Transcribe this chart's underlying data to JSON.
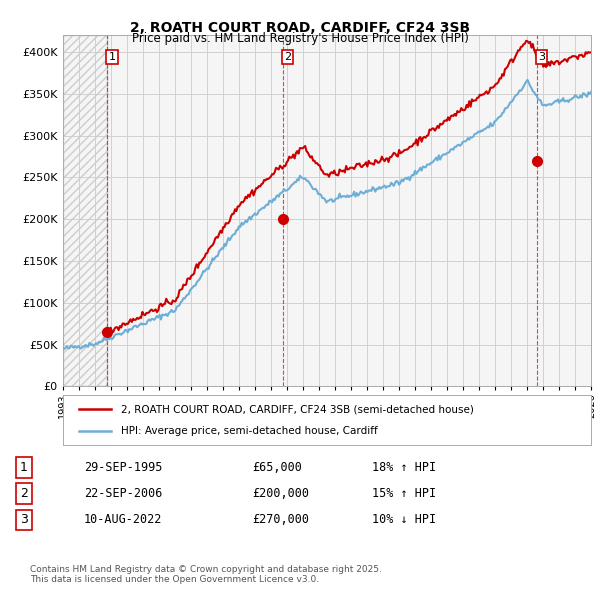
{
  "title_line1": "2, ROATH COURT ROAD, CARDIFF, CF24 3SB",
  "title_line2": "Price paid vs. HM Land Registry's House Price Index (HPI)",
  "ylim": [
    0,
    420000
  ],
  "yticks": [
    0,
    50000,
    100000,
    150000,
    200000,
    250000,
    300000,
    350000,
    400000
  ],
  "ytick_labels": [
    "£0",
    "£50K",
    "£100K",
    "£150K",
    "£200K",
    "£250K",
    "£300K",
    "£350K",
    "£400K"
  ],
  "hpi_color": "#6daed6",
  "price_color": "#cc0000",
  "vline_color": "#cc0000",
  "grid_color": "#d0d0d0",
  "bg_color": "#ffffff",
  "plot_bg_color": "#f5f5f5",
  "transactions": [
    {
      "label": "1",
      "date_num": 1995.75,
      "price": 65000,
      "pct": "18%",
      "dir": "↑",
      "date_str": "29-SEP-1995"
    },
    {
      "label": "2",
      "date_num": 2006.72,
      "price": 200000,
      "pct": "15%",
      "dir": "↑",
      "date_str": "22-SEP-2006"
    },
    {
      "label": "3",
      "date_num": 2022.6,
      "price": 270000,
      "pct": "10%",
      "dir": "↓",
      "date_str": "10-AUG-2022"
    }
  ],
  "legend_line1": "2, ROATH COURT ROAD, CARDIFF, CF24 3SB (semi-detached house)",
  "legend_line2": "HPI: Average price, semi-detached house, Cardiff",
  "footnote": "Contains HM Land Registry data © Crown copyright and database right 2025.\nThis data is licensed under the Open Government Licence v3.0.",
  "xmin": 1993,
  "xmax": 2026
}
